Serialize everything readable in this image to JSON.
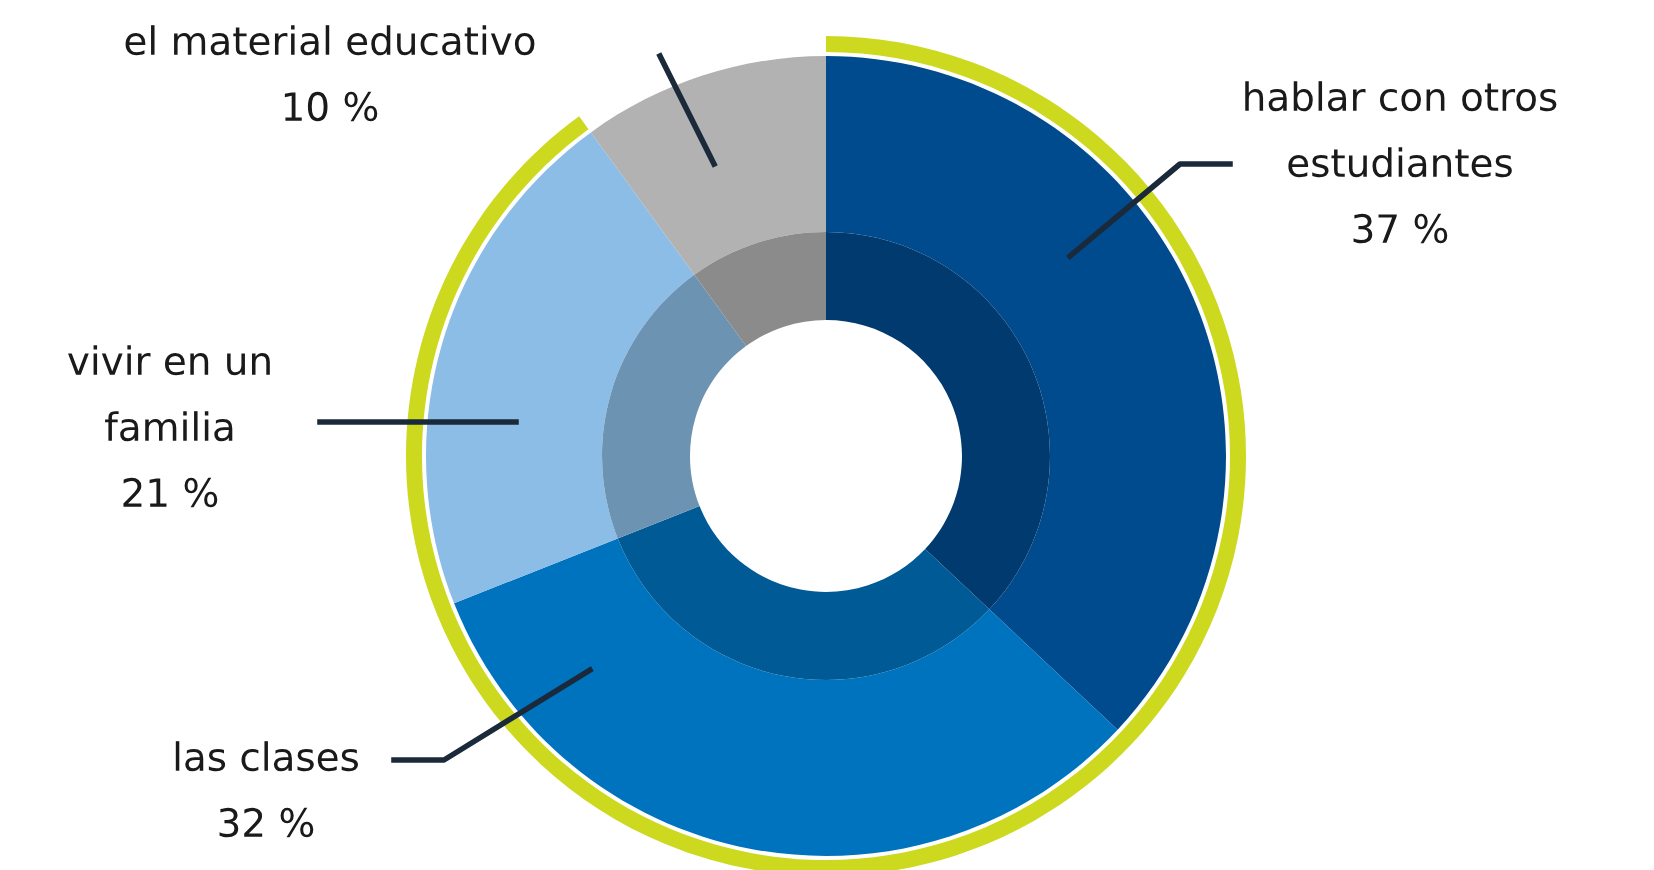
{
  "chart_data": {
    "type": "donut",
    "categories": [
      "hablar con otros estudiantes",
      "las clases",
      "vivir en un familia",
      "el material educativo"
    ],
    "series": [
      {
        "values": [
          37,
          32,
          21,
          10
        ],
        "colors": [
          "#004b8d",
          "#0073bf",
          "#8bbde6",
          "#b2b2b2"
        ]
      },
      {
        "values": [
          37,
          32,
          21,
          10
        ],
        "colors": [
          "#003a6e",
          "#005a95",
          "#6d93b3",
          "#8b8b8b"
        ]
      }
    ],
    "value_labels": [
      "37 %",
      "32 %",
      "21 %",
      "10 %"
    ]
  }
}
